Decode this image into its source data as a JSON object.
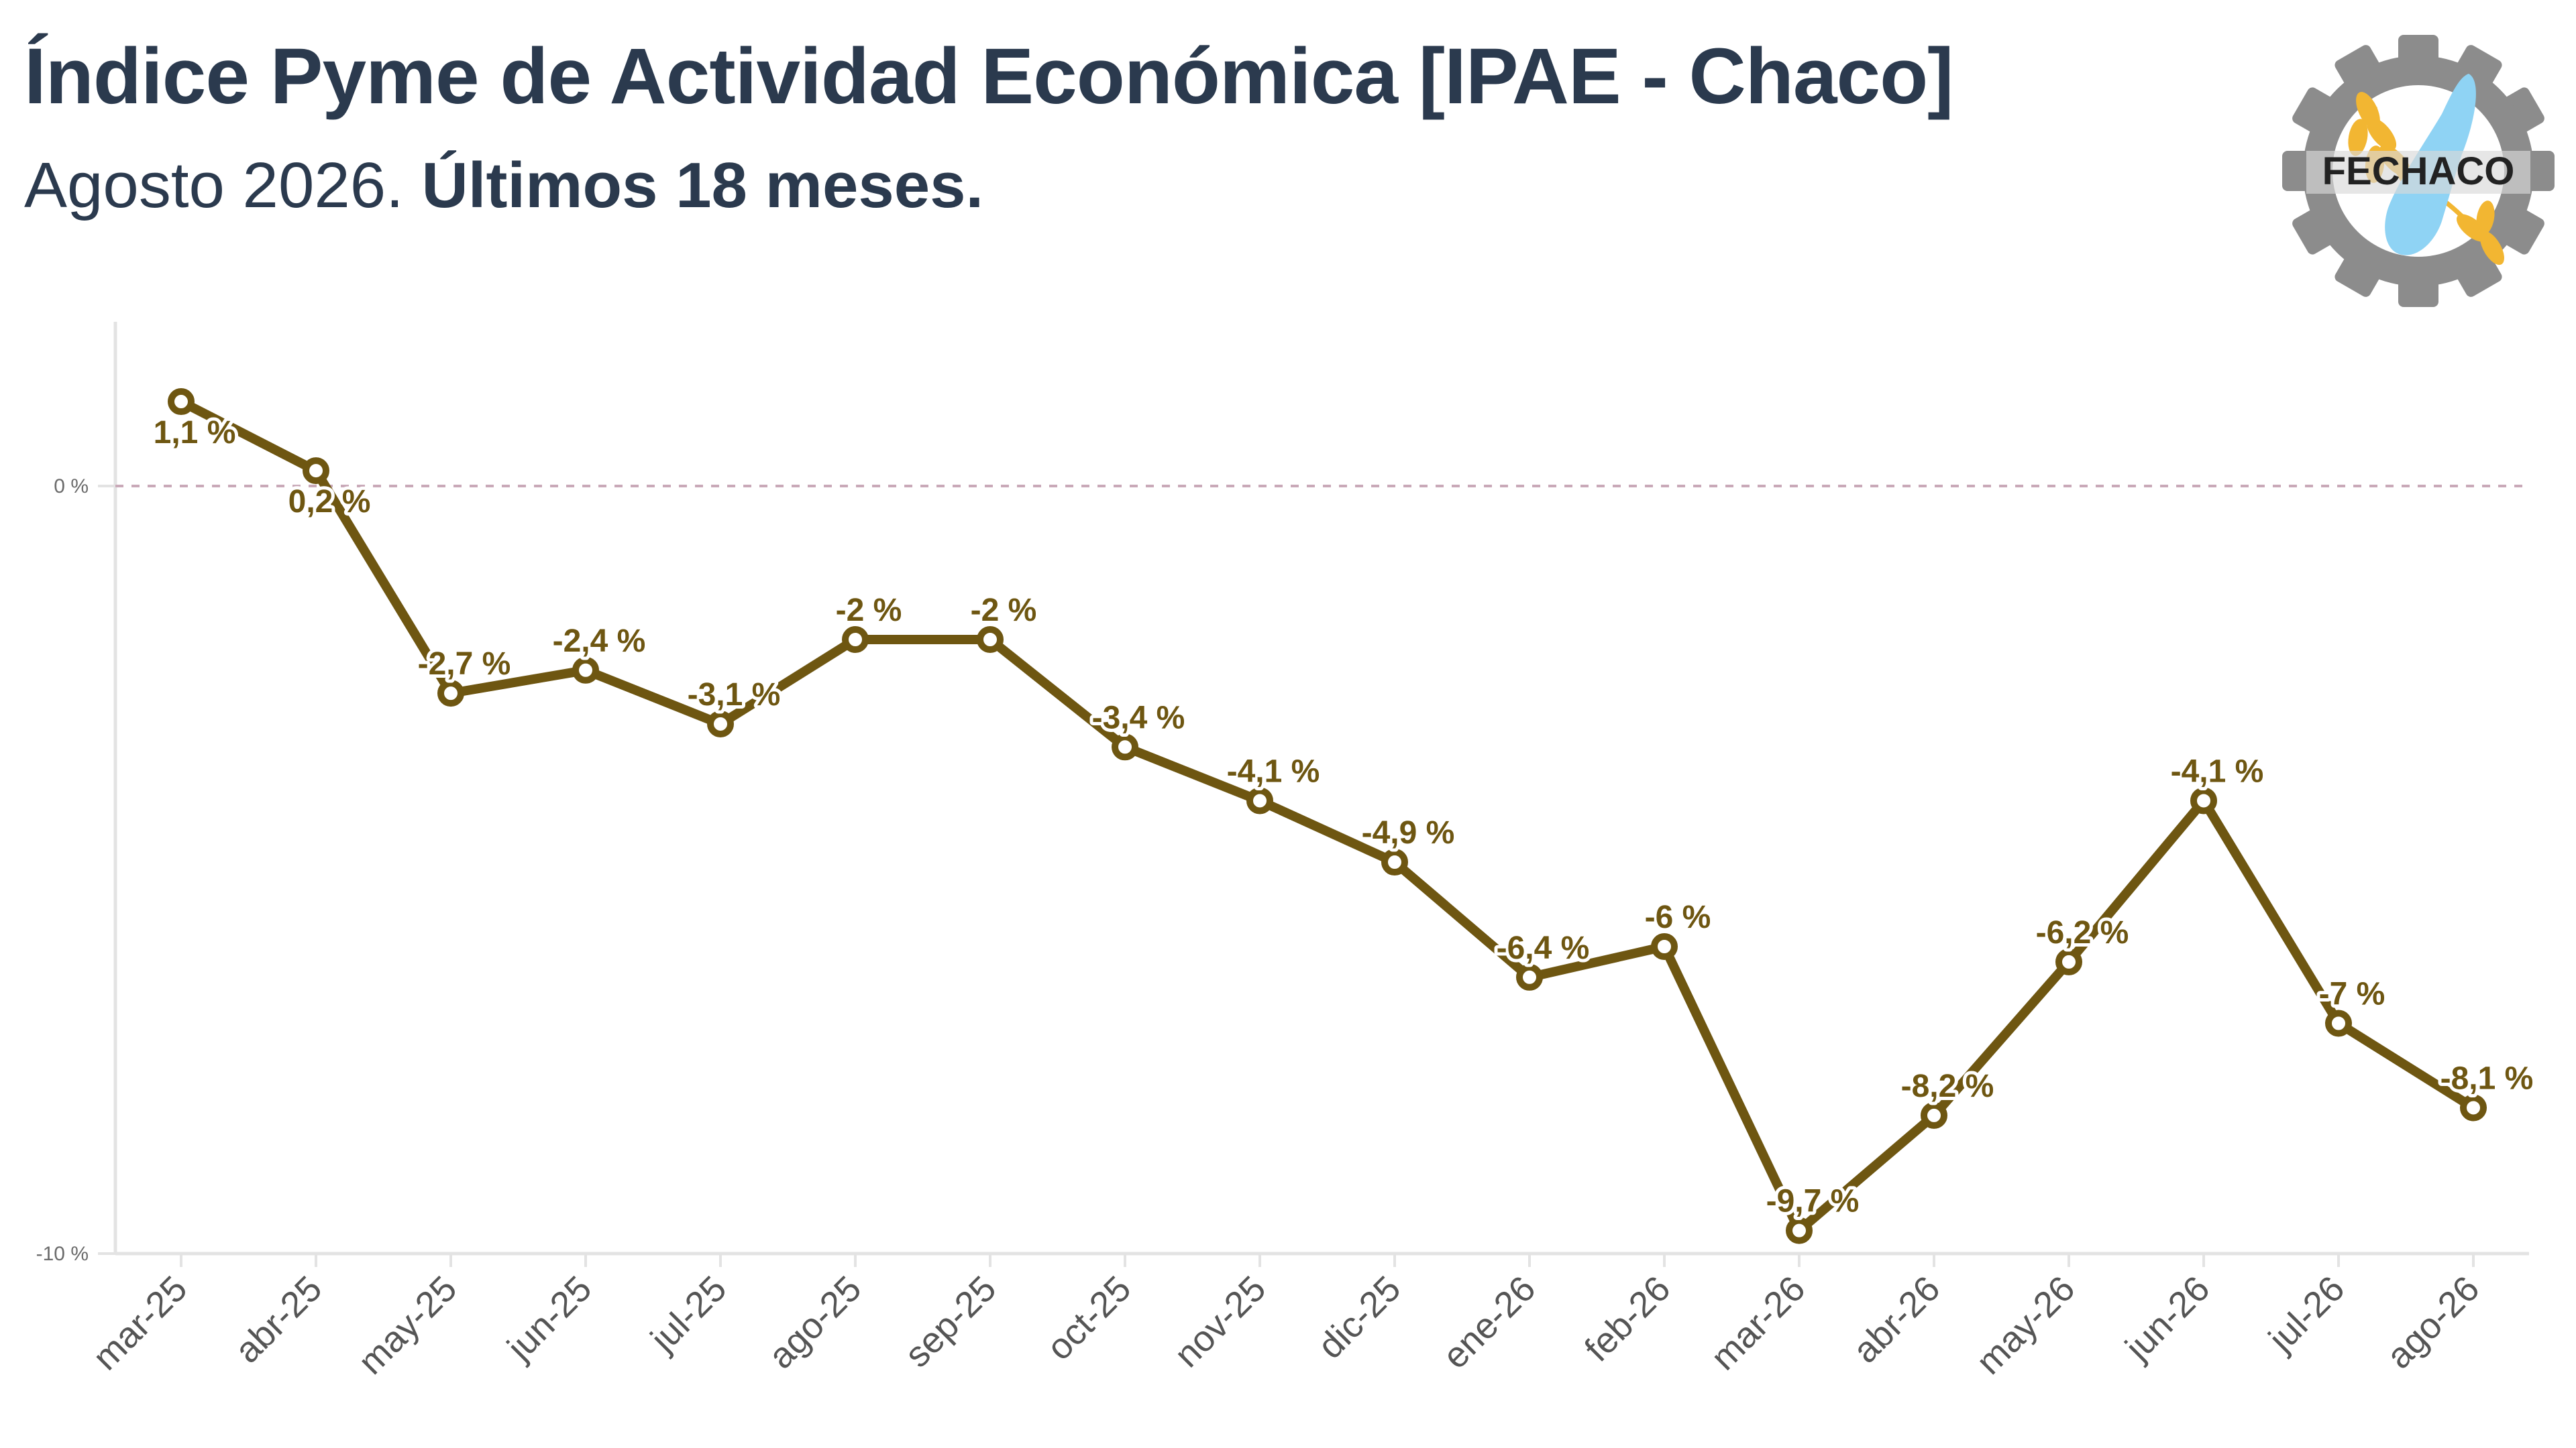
{
  "header": {
    "title": "Índice Pyme de Actividad Económica [IPAE - Chaco]",
    "subtitle_plain": "Agosto 2026. ",
    "subtitle_bold": "Últimos 18 meses."
  },
  "logo": {
    "text": "FECHACO",
    "icon": "fechaco-gear-wheat-hand-logo",
    "colors": {
      "gear": "#8c8c8c",
      "wheat": "#f2b632",
      "hand": "#8fd3f4",
      "text": "#222222"
    }
  },
  "chart_data": {
    "type": "line",
    "title": "",
    "xlabel": "",
    "ylabel": "",
    "categories": [
      "mar-25",
      "abr-25",
      "may-25",
      "jun-25",
      "jul-25",
      "ago-25",
      "sep-25",
      "oct-25",
      "nov-25",
      "dic-25",
      "ene-26",
      "feb-26",
      "mar-26",
      "abr-26",
      "may-26",
      "jun-26",
      "jul-26",
      "ago-26"
    ],
    "values": [
      1.1,
      0.2,
      -2.7,
      -2.4,
      -3.1,
      -2.0,
      -2.0,
      -3.4,
      -4.1,
      -4.9,
      -6.4,
      -6.0,
      -9.7,
      -8.2,
      -6.2,
      -4.1,
      -7.0,
      -8.1
    ],
    "data_labels": [
      "1,1 %",
      "0,2 %",
      "-2,7 %",
      "-2,4 %",
      "-3,1 %",
      "-2 %",
      "-2 %",
      "-3,4 %",
      "-4,1 %",
      "-4,9 %",
      "-6,4 %",
      "-6 %",
      "-9,7 %",
      "-8,2 %",
      "-6,2 %",
      "-4,1 %",
      "-7 %",
      "-8,1 %"
    ],
    "y_ticks": [
      {
        "value": 0,
        "label": "0 %"
      },
      {
        "value": -10,
        "label": "-10 %"
      }
    ],
    "ylim": [
      -10,
      2
    ],
    "reference_line": {
      "value": 0,
      "style": "dashed"
    },
    "grid": false,
    "legend": "none",
    "colors": {
      "line": "#6e5611",
      "label": "#6e5611",
      "reference": "#c9a9b8",
      "axis": "#e3e3e3"
    }
  }
}
